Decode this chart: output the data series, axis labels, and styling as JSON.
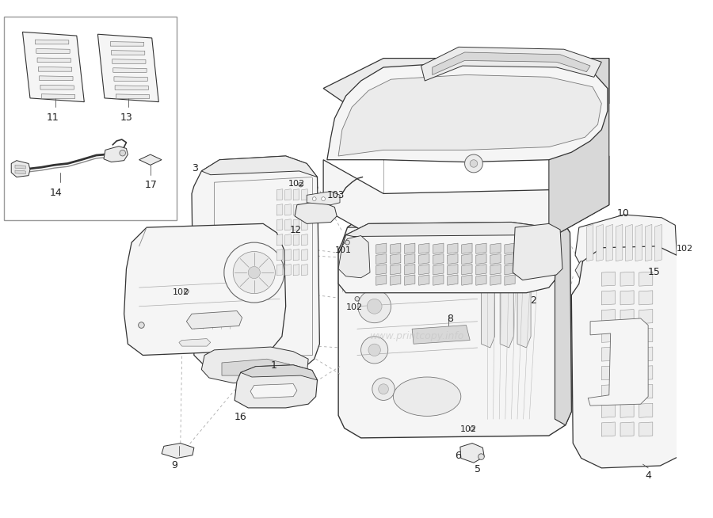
{
  "bg_color": "#ffffff",
  "line_color": "#333333",
  "fill_light": "#f5f5f5",
  "fill_med": "#ebebeb",
  "fill_dark": "#d8d8d8",
  "fill_white": "#ffffff",
  "inset_border": "#999999",
  "watermark": "www.printcopy.info",
  "watermark_color": "#c8c8c8",
  "label_fontsize": 8.5,
  "label_color": "#222222",
  "figw": 9.0,
  "figh": 6.54,
  "dpi": 100
}
